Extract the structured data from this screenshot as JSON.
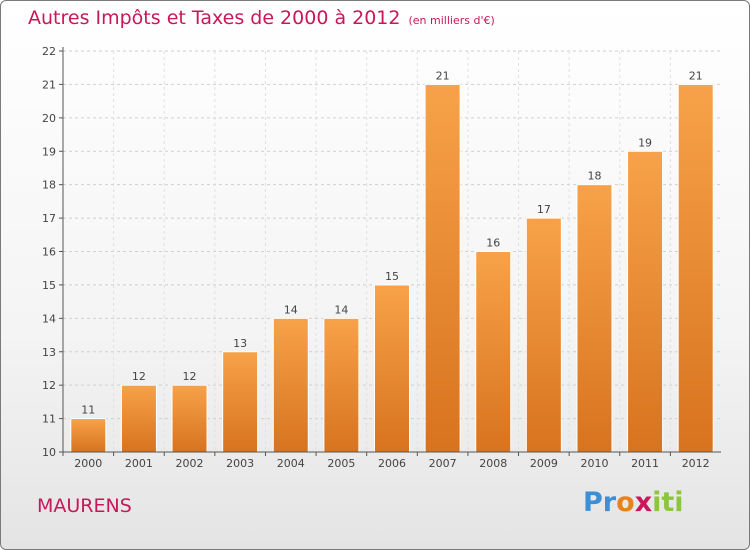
{
  "chart_data": {
    "type": "bar",
    "title": "Autres Impôts et Taxes de 2000 à 2012",
    "subtitle": "(en milliers d'€)",
    "categories": [
      "2000",
      "2001",
      "2002",
      "2003",
      "2004",
      "2005",
      "2006",
      "2007",
      "2008",
      "2009",
      "2010",
      "2011",
      "2012"
    ],
    "values": [
      11,
      12,
      12,
      13,
      14,
      14,
      15,
      21,
      16,
      17,
      18,
      19,
      21
    ],
    "data_labels": [
      "11",
      "12",
      "12",
      "13",
      "14",
      "14",
      "15",
      "21",
      "16",
      "17",
      "18",
      "19",
      "21"
    ],
    "ylim": [
      10,
      22
    ],
    "yticks": [
      "10",
      "11",
      "12",
      "13",
      "14",
      "15",
      "16",
      "17",
      "18",
      "19",
      "20",
      "21",
      "22"
    ],
    "grid": "horizontal dashed",
    "legend": "none",
    "bar_color_top": "#f7a24a",
    "bar_color_bottom": "#d8731e"
  },
  "footer": {
    "commune": "MAURENS",
    "logo_letters": [
      "P",
      "r",
      "o",
      "x",
      "i",
      "t",
      "i"
    ],
    "logo_colors": [
      "#3a8fd6",
      "#3a8fd6",
      "#e8821e",
      "#c8175a",
      "#8cc63e",
      "#8cc63e",
      "#8cc63e"
    ]
  },
  "colors": {
    "accent": "#c8175a"
  }
}
